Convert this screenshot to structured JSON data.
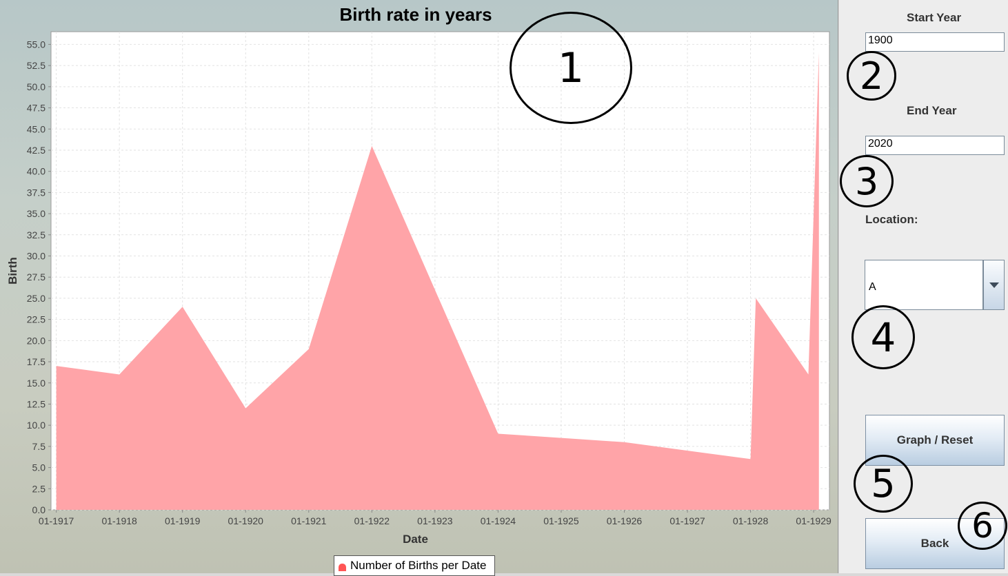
{
  "chart_data": {
    "type": "area",
    "title": "Birth rate in years",
    "xlabel": "Date",
    "ylabel": "Birth",
    "x_ticks": [
      "01-1917",
      "01-1918",
      "01-1919",
      "01-1920",
      "01-1921",
      "01-1922",
      "01-1923",
      "01-1924",
      "01-1925",
      "01-1926",
      "01-1927",
      "01-1928",
      "01-1929"
    ],
    "y_ticks": [
      "0.0",
      "2.5",
      "5.0",
      "7.5",
      "10.0",
      "12.5",
      "15.0",
      "17.5",
      "20.0",
      "22.5",
      "25.0",
      "27.5",
      "30.0",
      "32.5",
      "35.0",
      "37.5",
      "40.0",
      "42.5",
      "45.0",
      "47.5",
      "50.0",
      "52.5",
      "55.0"
    ],
    "ylim": [
      0,
      56.5
    ],
    "xlim": [
      "12-1916",
      "04-1929"
    ],
    "grid": true,
    "legend_position": "bottom",
    "series": [
      {
        "name": "Number of Births per Date",
        "color": "#ffa4a8",
        "points": [
          {
            "x": "01-1917",
            "y": 17
          },
          {
            "x": "01-1918",
            "y": 16
          },
          {
            "x": "01-1919",
            "y": 24
          },
          {
            "x": "01-1920",
            "y": 12
          },
          {
            "x": "01-1921",
            "y": 19
          },
          {
            "x": "01-1922",
            "y": 43
          },
          {
            "x": "01-1924",
            "y": 9
          },
          {
            "x": "01-1926",
            "y": 8
          },
          {
            "x": "01-1928",
            "y": 6
          },
          {
            "x": "02-1928",
            "y": 25
          },
          {
            "x": "12-1928",
            "y": 16
          },
          {
            "x": "02-1929",
            "y": 54
          }
        ]
      }
    ]
  },
  "controls": {
    "start_year_label": "Start Year",
    "start_year_value": "1900",
    "end_year_label": "End Year",
    "end_year_value": "2020",
    "location_label": "Location:",
    "location_value": "A",
    "graph_button": "Graph / Reset",
    "back_button": "Back"
  },
  "annotations": [
    "1",
    "2",
    "3",
    "4",
    "5",
    "6"
  ]
}
